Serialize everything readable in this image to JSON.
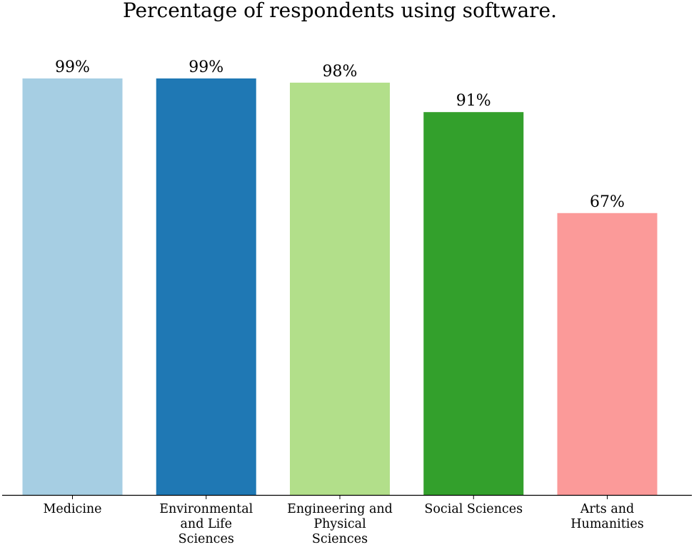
{
  "chart_data": {
    "type": "bar",
    "title": "Percentage of respondents using software.",
    "xlabel": "",
    "ylabel": "",
    "ylim": [
      0,
      100
    ],
    "grid": false,
    "categories": [
      "Medicine",
      "Environmental and Life Sciences",
      "Engineering and Physical Sciences",
      "Social Sciences",
      "Arts and Humanities"
    ],
    "category_label_lines": [
      [
        "Medicine"
      ],
      [
        "Environmental",
        "and Life",
        "Sciences"
      ],
      [
        "Engineering and",
        "Physical",
        "Sciences"
      ],
      [
        "Social Sciences"
      ],
      [
        "Arts and",
        "Humanities"
      ]
    ],
    "values": [
      99,
      99,
      98,
      91,
      67
    ],
    "value_labels": [
      "99%",
      "99%",
      "98%",
      "91%",
      "67%"
    ],
    "colors": [
      "#a6cee3",
      "#1f78b4",
      "#b2df8a",
      "#33a02c",
      "#fb9a99"
    ]
  }
}
